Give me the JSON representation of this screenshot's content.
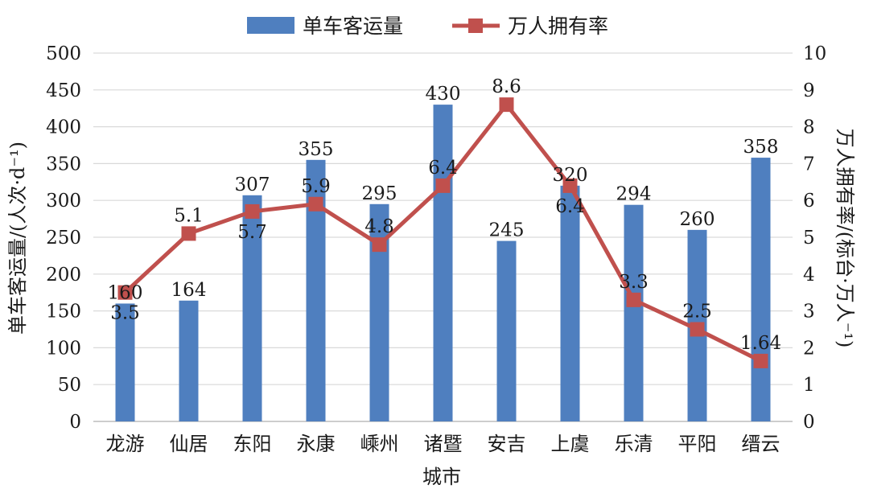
{
  "chart_data": {
    "type": "bar+line",
    "title": "",
    "categories": [
      "龙游",
      "仙居",
      "东阳",
      "永康",
      "嵊州",
      "诸暨",
      "安吉",
      "上虞",
      "乐清",
      "平阳",
      "缙云"
    ],
    "xlabel": "城市",
    "series": [
      {
        "name": "单车客运量",
        "type": "bar",
        "axis": "left",
        "values": [
          160,
          164,
          307,
          355,
          295,
          430,
          245,
          320,
          294,
          260,
          358
        ],
        "color": "#4f7fbf"
      },
      {
        "name": "万人拥有率",
        "type": "line",
        "axis": "right",
        "values": [
          3.5,
          5.1,
          5.7,
          5.9,
          4.8,
          6.4,
          8.6,
          6.4,
          3.3,
          2.5,
          1.64
        ],
        "color": "#c0504d",
        "marker": "square"
      }
    ],
    "y_left": {
      "label": "单车客运量/(人次·d⁻¹)",
      "ylim": [
        0,
        500
      ],
      "ticks": [
        "0",
        "50",
        "100",
        "150",
        "200",
        "250",
        "300",
        "350",
        "400",
        "450",
        "500"
      ]
    },
    "y_right": {
      "label": "万人拥有率/(标台·万人⁻¹)",
      "ylim": [
        0,
        10
      ],
      "ticks": [
        "0",
        "1",
        "2",
        "3",
        "4",
        "5",
        "6",
        "7",
        "8",
        "9",
        "10"
      ]
    },
    "bar_labels": [
      "160",
      "164",
      "307",
      "355",
      "295",
      "430",
      "245",
      "320",
      "294",
      "260",
      "358"
    ],
    "line_labels": [
      "3.5",
      "5.1",
      "5.7",
      "5.9",
      "4.8",
      "6.4",
      "8.6",
      "6.4",
      "3.3",
      "2.5",
      "1.64"
    ],
    "grid": true,
    "legend_position": "top-center"
  }
}
